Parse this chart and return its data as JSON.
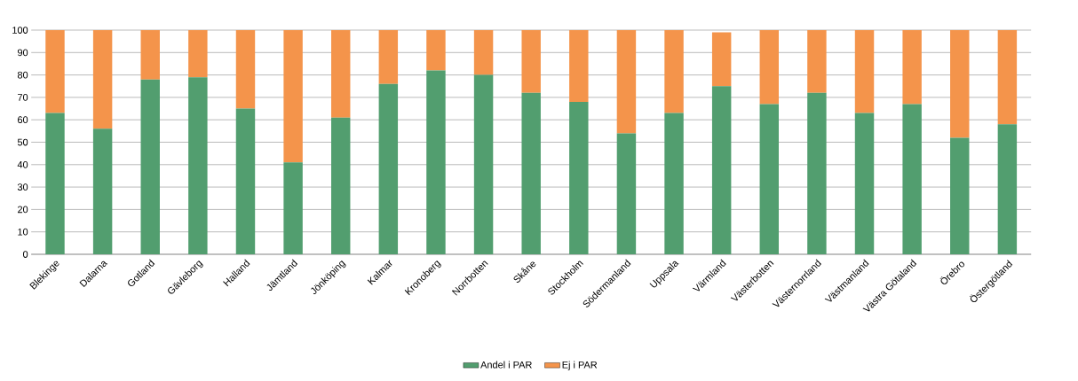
{
  "chart_data": {
    "type": "bar",
    "stacked": true,
    "categories": [
      "Blekinge",
      "Dalarna",
      "Gotland",
      "Gävleborg",
      "Halland",
      "Jämtland",
      "Jönköping",
      "Kalmar",
      "Kronoberg",
      "Norrbotten",
      "Skåne",
      "Stockholm",
      "Södermanland",
      "Uppsala",
      "Värmland",
      "Västerbotten",
      "Västernorrland",
      "Västmanland",
      "Västra Götaland",
      "Örebro",
      "Östergötland"
    ],
    "series": [
      {
        "name": "Andel i PAR",
        "color": "#529e6f",
        "values": [
          63,
          56,
          78,
          79,
          65,
          41,
          61,
          76,
          82,
          80,
          72,
          68,
          54,
          63,
          75,
          67,
          72,
          63,
          67,
          52,
          58
        ]
      },
      {
        "name": "Ej i PAR",
        "color": "#f4944b",
        "values": [
          37,
          44,
          22,
          21,
          35,
          59,
          39,
          24,
          18,
          20,
          28,
          32,
          46,
          37,
          24,
          33,
          28,
          37,
          33,
          48,
          42
        ]
      }
    ],
    "ylim": [
      0,
      100
    ],
    "yticks": [
      0,
      10,
      20,
      30,
      40,
      50,
      60,
      70,
      80,
      90,
      100
    ],
    "grid": "y",
    "legend": "bottom"
  }
}
